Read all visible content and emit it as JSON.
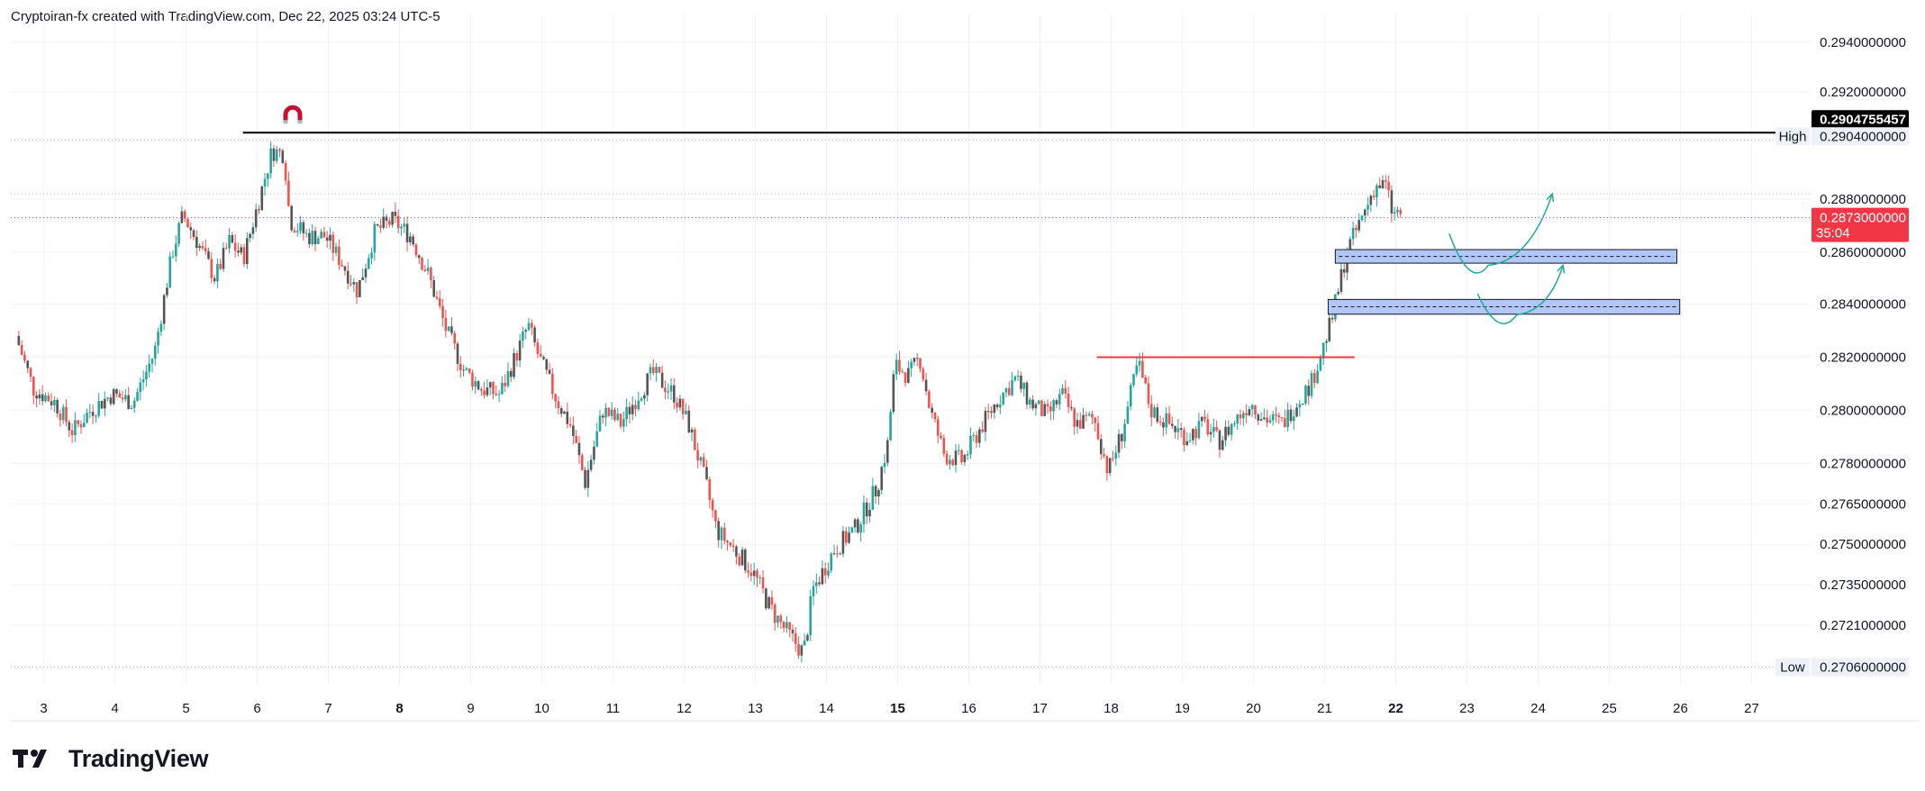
{
  "header": {
    "text": "Cryptoiran-fx created with TradingView.com, Dec 22, 2025 03:24 UTC-5"
  },
  "brand": {
    "name": "TradingView",
    "logo_icon": "tradingview-logo-icon"
  },
  "colors": {
    "up": "#26a69a",
    "down": "#ef5350",
    "candle_body_dark": "#555555",
    "high_line": "#000000",
    "price_line": "#f23645",
    "zone_fill": "#b3c7f7",
    "arrow": "#22ab94",
    "resistance": "#f23645",
    "grid": "#f0f3fa"
  },
  "chart_data": {
    "type": "candlestick",
    "title": "",
    "xlabel": "",
    "ylabel": "",
    "x_ticks": [
      {
        "day": 3,
        "label": "3",
        "bold": false
      },
      {
        "day": 4,
        "label": "4",
        "bold": false
      },
      {
        "day": 5,
        "label": "5",
        "bold": false
      },
      {
        "day": 6,
        "label": "6",
        "bold": false
      },
      {
        "day": 7,
        "label": "7",
        "bold": false
      },
      {
        "day": 8,
        "label": "8",
        "bold": true
      },
      {
        "day": 9,
        "label": "9",
        "bold": false
      },
      {
        "day": 10,
        "label": "10",
        "bold": false
      },
      {
        "day": 11,
        "label": "11",
        "bold": false
      },
      {
        "day": 12,
        "label": "12",
        "bold": false
      },
      {
        "day": 13,
        "label": "13",
        "bold": false
      },
      {
        "day": 14,
        "label": "14",
        "bold": false
      },
      {
        "day": 15,
        "label": "15",
        "bold": true
      },
      {
        "day": 16,
        "label": "16",
        "bold": false
      },
      {
        "day": 17,
        "label": "17",
        "bold": false
      },
      {
        "day": 18,
        "label": "18",
        "bold": false
      },
      {
        "day": 19,
        "label": "19",
        "bold": false
      },
      {
        "day": 20,
        "label": "20",
        "bold": false
      },
      {
        "day": 21,
        "label": "21",
        "bold": false
      },
      {
        "day": 22,
        "label": "22",
        "bold": true
      },
      {
        "day": 23,
        "label": "23",
        "bold": false
      },
      {
        "day": 24,
        "label": "24",
        "bold": false
      },
      {
        "day": 25,
        "label": "25",
        "bold": false
      },
      {
        "day": 26,
        "label": "26",
        "bold": false
      },
      {
        "day": 27,
        "label": "27",
        "bold": false
      }
    ],
    "y_ticks": [
      {
        "value": 0.294,
        "label": "0.2940000000"
      },
      {
        "value": 0.292,
        "label": "0.2920000000"
      },
      {
        "value": 0.288,
        "label": "0.2880000000"
      },
      {
        "value": 0.286,
        "label": "0.2860000000"
      },
      {
        "value": 0.284,
        "label": "0.2840000000"
      },
      {
        "value": 0.282,
        "label": "0.2820000000"
      },
      {
        "value": 0.28,
        "label": "0.2800000000"
      },
      {
        "value": 0.278,
        "label": "0.2780000000"
      },
      {
        "value": 0.2765,
        "label": "0.2765000000"
      },
      {
        "value": 0.275,
        "label": "0.2750000000"
      },
      {
        "value": 0.2735,
        "label": "0.2735000000"
      },
      {
        "value": 0.2721,
        "label": "0.2721000000"
      }
    ],
    "y_scale_points": [
      {
        "value": 0.294,
        "frac": 0.0
      },
      {
        "value": 0.292,
        "frac": 0.0772
      },
      {
        "value": 0.288,
        "frac": 0.2441
      },
      {
        "value": 0.286,
        "frac": 0.3268
      },
      {
        "value": 0.284,
        "frac": 0.4075
      },
      {
        "value": 0.282,
        "frac": 0.4902
      },
      {
        "value": 0.28,
        "frac": 0.5728
      },
      {
        "value": 0.278,
        "frac": 0.6555
      },
      {
        "value": 0.2765,
        "frac": 0.7185
      },
      {
        "value": 0.275,
        "frac": 0.7815
      },
      {
        "value": 0.2735,
        "frac": 0.8445
      },
      {
        "value": 0.2721,
        "frac": 0.9075
      },
      {
        "value": 0.2706,
        "frac": 0.9724
      }
    ],
    "price_tags": {
      "high_label": "High",
      "high_value": "0.2904000000",
      "line_value": "0.2904755457",
      "current_value": "0.2873000000",
      "countdown": "35:04",
      "low_label": "Low",
      "low_value": "0.2706000000"
    },
    "levels": {
      "high": 0.29048,
      "current": 0.2873,
      "low": 0.2706,
      "dotted_upper": 0.2902,
      "dotted_mid": 0.2882
    },
    "path_points": [
      [
        2.65,
        0.2828
      ],
      [
        2.9,
        0.2808
      ],
      [
        3.2,
        0.2803
      ],
      [
        3.45,
        0.2792
      ],
      [
        3.7,
        0.28
      ],
      [
        4.0,
        0.2806
      ],
      [
        4.3,
        0.2803
      ],
      [
        4.6,
        0.2822
      ],
      [
        4.85,
        0.286
      ],
      [
        5.0,
        0.2874
      ],
      [
        5.2,
        0.2864
      ],
      [
        5.45,
        0.285
      ],
      [
        5.65,
        0.2864
      ],
      [
        5.85,
        0.2858
      ],
      [
        6.05,
        0.2878
      ],
      [
        6.25,
        0.2898
      ],
      [
        6.42,
        0.2897
      ],
      [
        6.5,
        0.2872
      ],
      [
        6.75,
        0.2866
      ],
      [
        7.0,
        0.2866
      ],
      [
        7.25,
        0.2855
      ],
      [
        7.45,
        0.2845
      ],
      [
        7.7,
        0.2868
      ],
      [
        7.95,
        0.2872
      ],
      [
        8.2,
        0.2866
      ],
      [
        8.45,
        0.2851
      ],
      [
        8.7,
        0.283
      ],
      [
        8.95,
        0.2815
      ],
      [
        9.2,
        0.2808
      ],
      [
        9.45,
        0.2806
      ],
      [
        9.7,
        0.2822
      ],
      [
        9.85,
        0.2832
      ],
      [
        10.0,
        0.282
      ],
      [
        10.25,
        0.2804
      ],
      [
        10.45,
        0.2794
      ],
      [
        10.65,
        0.2773
      ],
      [
        10.9,
        0.28
      ],
      [
        11.15,
        0.2795
      ],
      [
        11.4,
        0.2806
      ],
      [
        11.6,
        0.2814
      ],
      [
        11.9,
        0.2806
      ],
      [
        12.1,
        0.2795
      ],
      [
        12.35,
        0.2772
      ],
      [
        12.5,
        0.2755
      ],
      [
        12.75,
        0.2748
      ],
      [
        13.0,
        0.274
      ],
      [
        13.25,
        0.2727
      ],
      [
        13.5,
        0.2718
      ],
      [
        13.72,
        0.2711
      ],
      [
        13.85,
        0.2733
      ],
      [
        14.15,
        0.2748
      ],
      [
        14.45,
        0.2756
      ],
      [
        14.75,
        0.2771
      ],
      [
        14.9,
        0.2787
      ],
      [
        15.0,
        0.2817
      ],
      [
        15.2,
        0.2813
      ],
      [
        15.35,
        0.282
      ],
      [
        15.5,
        0.28
      ],
      [
        15.7,
        0.2783
      ],
      [
        15.95,
        0.2781
      ],
      [
        16.2,
        0.2793
      ],
      [
        16.45,
        0.2804
      ],
      [
        16.7,
        0.2812
      ],
      [
        16.9,
        0.2803
      ],
      [
        17.15,
        0.2798
      ],
      [
        17.35,
        0.2806
      ],
      [
        17.55,
        0.2795
      ],
      [
        17.8,
        0.2797
      ],
      [
        18.0,
        0.2777
      ],
      [
        18.2,
        0.2792
      ],
      [
        18.42,
        0.2818
      ],
      [
        18.6,
        0.28
      ],
      [
        18.85,
        0.2795
      ],
      [
        19.1,
        0.279
      ],
      [
        19.35,
        0.2795
      ],
      [
        19.55,
        0.2788
      ],
      [
        19.75,
        0.2795
      ],
      [
        20.0,
        0.2803
      ],
      [
        20.2,
        0.2797
      ],
      [
        20.45,
        0.2795
      ],
      [
        20.65,
        0.2803
      ],
      [
        20.85,
        0.281
      ],
      [
        21.0,
        0.2822
      ],
      [
        21.15,
        0.2835
      ],
      [
        21.35,
        0.286
      ],
      [
        21.55,
        0.2872
      ],
      [
        21.75,
        0.2885
      ],
      [
        21.9,
        0.2885
      ],
      [
        22.0,
        0.2874
      ],
      [
        22.1,
        0.2875
      ]
    ]
  },
  "annotations": {
    "high_line": {
      "x_start": 5.8,
      "x_end": 27.4,
      "value": 0.29048
    },
    "resistance_line": {
      "x_start": 17.8,
      "x_end": 21.42,
      "value": 0.282
    },
    "zones": [
      {
        "x_start": 21.15,
        "x_end": 25.95,
        "top": 0.2861,
        "bottom": 0.28558
      },
      {
        "x_start": 21.05,
        "x_end": 25.99,
        "top": 0.28418,
        "bottom": 0.28362
      }
    ],
    "arrows": [
      {
        "from": [
          22.75,
          0.2867
        ],
        "mid": [
          23.3,
          0.2855
        ],
        "to": [
          24.2,
          0.2882
        ]
      },
      {
        "from": [
          23.15,
          0.2844
        ],
        "mid": [
          23.7,
          0.2836
        ],
        "to": [
          24.35,
          0.2855
        ]
      }
    ],
    "magnet_icon": "magnet-icon"
  }
}
